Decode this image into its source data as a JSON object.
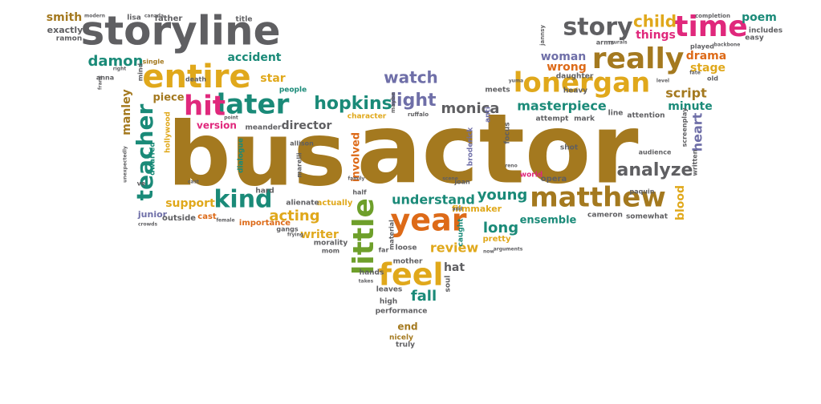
{
  "colors": {
    "brown": "#a4791f",
    "gray": "#5f5f62",
    "gold": "#e0a81b",
    "teal": "#1a8a78",
    "magenta": "#e0287c",
    "orange": "#dd6a18",
    "purple": "#6f6fa8",
    "green": "#6e9f2a"
  },
  "words": [
    {
      "text": "actor",
      "color": "brown"
    },
    {
      "text": "bus",
      "color": "brown"
    },
    {
      "text": "storyline",
      "color": "gray"
    },
    {
      "text": "entire",
      "color": "gold"
    },
    {
      "text": "really",
      "color": "brown"
    },
    {
      "text": "lonergan",
      "color": "gold"
    },
    {
      "text": "matthew",
      "color": "brown"
    },
    {
      "text": "time",
      "color": "magenta"
    },
    {
      "text": "story",
      "color": "gray"
    },
    {
      "text": "later",
      "color": "teal"
    },
    {
      "text": "hit",
      "color": "magenta"
    },
    {
      "text": "year",
      "color": "orange"
    },
    {
      "text": "feel",
      "color": "gold"
    },
    {
      "text": "little",
      "color": "green"
    },
    {
      "text": "teacher",
      "color": "teal"
    },
    {
      "text": "kind",
      "color": "teal"
    },
    {
      "text": "hopkins",
      "color": "teal"
    },
    {
      "text": "light",
      "color": "purple"
    },
    {
      "text": "watch",
      "color": "purple"
    },
    {
      "text": "analyze",
      "color": "gray"
    },
    {
      "text": "child",
      "color": "gold"
    },
    {
      "text": "masterpiece",
      "color": "teal"
    },
    {
      "text": "monica",
      "color": "gray"
    },
    {
      "text": "damon",
      "color": "teal"
    },
    {
      "text": "understand",
      "color": "teal"
    },
    {
      "text": "young",
      "color": "teal"
    },
    {
      "text": "acting",
      "color": "gold"
    },
    {
      "text": "review",
      "color": "gold"
    },
    {
      "text": "fall",
      "color": "teal"
    },
    {
      "text": "long",
      "color": "teal"
    },
    {
      "text": "script",
      "color": "brown"
    },
    {
      "text": "minute",
      "color": "teal"
    },
    {
      "text": "drama",
      "color": "orange"
    },
    {
      "text": "stage",
      "color": "gold"
    },
    {
      "text": "poem",
      "color": "teal"
    },
    {
      "text": "heart",
      "color": "purple"
    },
    {
      "text": "blood",
      "color": "gold"
    },
    {
      "text": "director",
      "color": "gray"
    },
    {
      "text": "star",
      "color": "gold"
    },
    {
      "text": "accident",
      "color": "teal"
    },
    {
      "text": "piece",
      "color": "brown"
    },
    {
      "text": "things",
      "color": "magenta"
    },
    {
      "text": "wrong",
      "color": "orange"
    },
    {
      "text": "woman",
      "color": "purple"
    },
    {
      "text": "manley",
      "color": "brown"
    },
    {
      "text": "smith",
      "color": "brown"
    },
    {
      "text": "support",
      "color": "gold"
    },
    {
      "text": "writer",
      "color": "gold"
    },
    {
      "text": "hat",
      "color": "gray"
    },
    {
      "text": "end",
      "color": "brown"
    },
    {
      "text": "ensemble",
      "color": "teal"
    },
    {
      "text": "version",
      "color": "magenta"
    },
    {
      "text": "involved",
      "color": "orange"
    },
    {
      "text": "filmmaker",
      "color": "gold"
    },
    {
      "text": "junior",
      "color": "purple"
    },
    {
      "text": "outside",
      "color": "gray"
    },
    {
      "text": "cast",
      "color": "orange"
    },
    {
      "text": "importance",
      "color": "orange"
    },
    {
      "text": "actually",
      "color": "gold"
    },
    {
      "text": "alienate",
      "color": "gray"
    },
    {
      "text": "hard",
      "color": "gray"
    },
    {
      "text": "meander",
      "color": "gray"
    },
    {
      "text": "dialogue",
      "color": "teal"
    },
    {
      "text": "dwarfed",
      "color": "teal"
    },
    {
      "text": "hollywood",
      "color": "gold"
    },
    {
      "text": "character",
      "color": "gold"
    },
    {
      "text": "people",
      "color": "teal"
    },
    {
      "text": "daughter",
      "color": "gray"
    },
    {
      "text": "heavy",
      "color": "gray"
    },
    {
      "text": "mark",
      "color": "gray"
    },
    {
      "text": "attempt",
      "color": "gray"
    },
    {
      "text": "attention",
      "color": "gray"
    },
    {
      "text": "line",
      "color": "gray"
    },
    {
      "text": "opera",
      "color": "gray"
    },
    {
      "text": "world",
      "color": "magenta"
    },
    {
      "text": "shot",
      "color": "gray"
    },
    {
      "text": "cameron",
      "color": "gray"
    },
    {
      "text": "somewhat",
      "color": "gray"
    },
    {
      "text": "pretty",
      "color": "gold"
    },
    {
      "text": "meets",
      "color": "gray"
    },
    {
      "text": "anti",
      "color": "purple"
    },
    {
      "text": "focus",
      "color": "gray"
    },
    {
      "text": "broderick",
      "color": "purple"
    },
    {
      "text": "caught",
      "color": "teal"
    },
    {
      "text": "loose",
      "color": "gray"
    },
    {
      "text": "mother",
      "color": "gray"
    },
    {
      "text": "hands",
      "color": "gray"
    },
    {
      "text": "leaves",
      "color": "gray"
    },
    {
      "text": "high",
      "color": "gray"
    },
    {
      "text": "performance",
      "color": "gray"
    },
    {
      "text": "nicely",
      "color": "brown"
    },
    {
      "text": "truly",
      "color": "gray"
    },
    {
      "text": "soul",
      "color": "gray"
    },
    {
      "text": "gangs",
      "color": "gray"
    },
    {
      "text": "morality",
      "color": "gray"
    },
    {
      "text": "mom",
      "color": "gray"
    },
    {
      "text": "far",
      "color": "gray"
    },
    {
      "text": "half",
      "color": "gray"
    },
    {
      "text": "material",
      "color": "gray"
    },
    {
      "text": "joan",
      "color": "gray"
    },
    {
      "text": "death",
      "color": "gray"
    },
    {
      "text": "allison",
      "color": "gray"
    },
    {
      "text": "father",
      "color": "gray"
    },
    {
      "text": "lisa",
      "color": "gray"
    },
    {
      "text": "title",
      "color": "gray"
    },
    {
      "text": "exactly",
      "color": "gray"
    },
    {
      "text": "ramon",
      "color": "gray"
    },
    {
      "text": "single",
      "color": "brown"
    },
    {
      "text": "anna",
      "color": "gray"
    },
    {
      "text": "mind",
      "color": "gray"
    },
    {
      "text": "marelli",
      "color": "gray"
    },
    {
      "text": "ve",
      "color": "gray"
    },
    {
      "text": "maybe",
      "color": "gray"
    },
    {
      "text": "ruffalo",
      "color": "gray"
    },
    {
      "text": "includes",
      "color": "gray"
    },
    {
      "text": "easy",
      "color": "gray"
    },
    {
      "text": "old",
      "color": "gray"
    },
    {
      "text": "played",
      "color": "gray"
    },
    {
      "text": "arms",
      "color": "gray"
    },
    {
      "text": "screenplay",
      "color": "gray"
    },
    {
      "text": "audience",
      "color": "gray"
    },
    {
      "text": "written",
      "color": "gray"
    },
    {
      "text": "paquin",
      "color": "gray"
    },
    {
      "text": "jannsy",
      "color": "gray"
    },
    {
      "text": "completion",
      "color": "gray"
    },
    {
      "text": "modern",
      "color": "gray"
    },
    {
      "text": "canada",
      "color": "gray"
    },
    {
      "text": "unexpectedly",
      "color": "gray"
    },
    {
      "text": "female",
      "color": "gray"
    },
    {
      "text": "frying",
      "color": "gray"
    },
    {
      "text": "arguments",
      "color": "gray"
    },
    {
      "text": "fate",
      "color": "gray"
    },
    {
      "text": "level",
      "color": "gray"
    },
    {
      "text": "point",
      "color": "gray"
    },
    {
      "text": "crowds",
      "color": "gray"
    },
    {
      "text": "yuma",
      "color": "gray"
    },
    {
      "text": "right",
      "color": "gray"
    },
    {
      "text": "murals",
      "color": "gray"
    },
    {
      "text": "backbone",
      "color": "gray"
    },
    {
      "text": "family",
      "color": "gray"
    },
    {
      "text": "reno",
      "color": "gray"
    },
    {
      "text": "add",
      "color": "gray"
    },
    {
      "text": "now",
      "color": "gray"
    },
    {
      "text": "takes",
      "color": "gray"
    },
    {
      "text": "frank",
      "color": "gray"
    },
    {
      "text": "scene",
      "color": "gray"
    },
    {
      "text": "cast",
      "color": "gray"
    }
  ]
}
